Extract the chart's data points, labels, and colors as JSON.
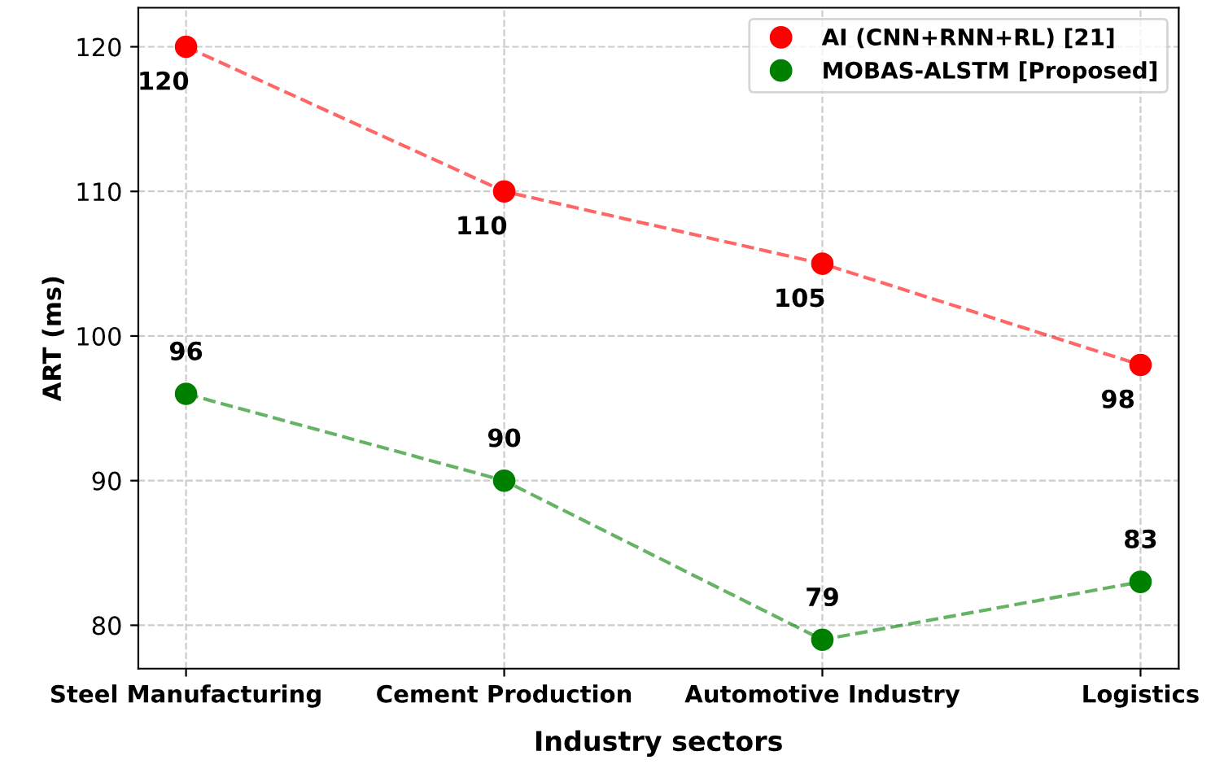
{
  "chart_data": {
    "type": "line",
    "xlabel": "Industry sectors",
    "ylabel": "ART (ms)",
    "categories": [
      "Steel Manufacturing",
      "Cement Production",
      "Automotive Industry",
      "Logistics"
    ],
    "series": [
      {
        "name": "AI (CNN+RNN+RL) [21]",
        "color": "#ff0000",
        "values": [
          120,
          110,
          105,
          98
        ]
      },
      {
        "name": "MOBAS-ALSTM [Proposed]",
        "color": "#008000",
        "values": [
          96,
          90,
          79,
          83
        ]
      }
    ],
    "ylim": [
      77,
      122.7
    ],
    "yticks": [
      80,
      90,
      100,
      110,
      120
    ],
    "grid": true,
    "legend": "top right",
    "marker": "circle",
    "line_style": "dashed",
    "data_labels": true
  }
}
